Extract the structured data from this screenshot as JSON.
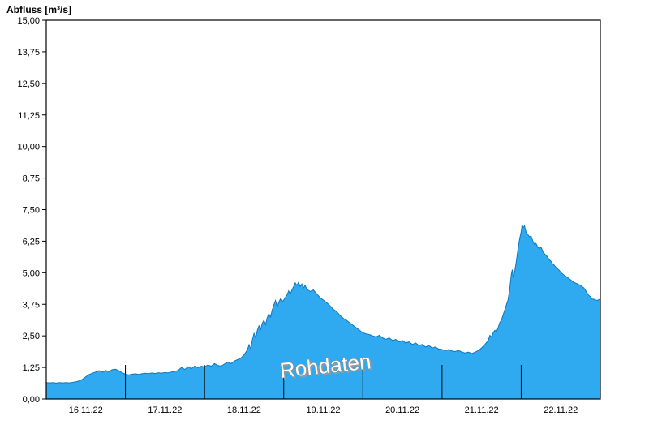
{
  "title": "Abfluss [m³/s]",
  "watermark": "Rohdaten",
  "chart_data": {
    "type": "area",
    "title": "Abfluss [m³/s]",
    "xlabel": "",
    "ylabel": "Abfluss [m³/s]",
    "ylim": [
      0,
      15
    ],
    "xlim": [
      0,
      168
    ],
    "x_unit": "hours since 16.11.22 00:00",
    "ytick_step": 1.25,
    "ytick_labels": [
      "0,00",
      "1,25",
      "2,50",
      "3,75",
      "5,00",
      "6,25",
      "7,50",
      "8,75",
      "10,00",
      "11,25",
      "12,50",
      "13,75",
      "15,00"
    ],
    "day_labels": [
      "16.11.22",
      "17.11.22",
      "18.11.22",
      "19.11.22",
      "20.11.22",
      "21.11.22",
      "22.11.22"
    ],
    "day_boundaries_hours": [
      24,
      48,
      72,
      96,
      120,
      144
    ],
    "grid": false,
    "legend": "none",
    "fill_color": "#2FA9F0",
    "line_color": "#0B77C2",
    "frame_color": "#000000",
    "points": [
      [
        0,
        0.65
      ],
      [
        1,
        0.64
      ],
      [
        2,
        0.65
      ],
      [
        3,
        0.63
      ],
      [
        4,
        0.65
      ],
      [
        5,
        0.64
      ],
      [
        6,
        0.65
      ],
      [
        7,
        0.64
      ],
      [
        8,
        0.66
      ],
      [
        9,
        0.68
      ],
      [
        10,
        0.72
      ],
      [
        11,
        0.78
      ],
      [
        12,
        0.88
      ],
      [
        13,
        0.97
      ],
      [
        14,
        1.02
      ],
      [
        15,
        1.07
      ],
      [
        16,
        1.12
      ],
      [
        17,
        1.06
      ],
      [
        18,
        1.13
      ],
      [
        19,
        1.08
      ],
      [
        20,
        1.16
      ],
      [
        21,
        1.18
      ],
      [
        22,
        1.12
      ],
      [
        23,
        1.04
      ],
      [
        24,
        0.98
      ],
      [
        25,
        0.95
      ],
      [
        26,
        0.98
      ],
      [
        27,
        1.0
      ],
      [
        28,
        0.97
      ],
      [
        29,
        1.0
      ],
      [
        30,
        1.02
      ],
      [
        31,
        1.0
      ],
      [
        32,
        1.03
      ],
      [
        33,
        1.01
      ],
      [
        34,
        1.04
      ],
      [
        35,
        1.02
      ],
      [
        36,
        1.05
      ],
      [
        37,
        1.03
      ],
      [
        38,
        1.07
      ],
      [
        39,
        1.1
      ],
      [
        40,
        1.13
      ],
      [
        41,
        1.25
      ],
      [
        42,
        1.17
      ],
      [
        43,
        1.28
      ],
      [
        44,
        1.2
      ],
      [
        45,
        1.3
      ],
      [
        46,
        1.24
      ],
      [
        47,
        1.3
      ],
      [
        48,
        1.27
      ],
      [
        49,
        1.35
      ],
      [
        50,
        1.3
      ],
      [
        51,
        1.4
      ],
      [
        52,
        1.33
      ],
      [
        53,
        1.3
      ],
      [
        54,
        1.38
      ],
      [
        55,
        1.46
      ],
      [
        56,
        1.4
      ],
      [
        57,
        1.5
      ],
      [
        58,
        1.56
      ],
      [
        59,
        1.62
      ],
      [
        60,
        1.75
      ],
      [
        61,
        1.95
      ],
      [
        61.5,
        2.15
      ],
      [
        62,
        1.98
      ],
      [
        62.5,
        2.35
      ],
      [
        63,
        2.6
      ],
      [
        63.5,
        2.42
      ],
      [
        64,
        2.72
      ],
      [
        64.5,
        2.9
      ],
      [
        65,
        2.75
      ],
      [
        65.5,
        3.0
      ],
      [
        66,
        3.12
      ],
      [
        66.5,
        2.95
      ],
      [
        67,
        3.22
      ],
      [
        67.5,
        3.38
      ],
      [
        68,
        3.25
      ],
      [
        68.5,
        3.52
      ],
      [
        69,
        3.72
      ],
      [
        69.5,
        3.9
      ],
      [
        70,
        3.65
      ],
      [
        70.5,
        3.82
      ],
      [
        71,
        3.96
      ],
      [
        71.5,
        3.85
      ],
      [
        72,
        3.92
      ],
      [
        72.5,
        4.02
      ],
      [
        73,
        4.12
      ],
      [
        73.5,
        4.28
      ],
      [
        74,
        4.15
      ],
      [
        74.5,
        4.32
      ],
      [
        75,
        4.45
      ],
      [
        75.5,
        4.6
      ],
      [
        76,
        4.5
      ],
      [
        76.5,
        4.62
      ],
      [
        77,
        4.46
      ],
      [
        77.5,
        4.56
      ],
      [
        78,
        4.4
      ],
      [
        78.5,
        4.5
      ],
      [
        79,
        4.35
      ],
      [
        80,
        4.26
      ],
      [
        81,
        4.32
      ],
      [
        82,
        4.16
      ],
      [
        83,
        4.02
      ],
      [
        84,
        3.92
      ],
      [
        85,
        3.82
      ],
      [
        86,
        3.7
      ],
      [
        87,
        3.56
      ],
      [
        88,
        3.46
      ],
      [
        89,
        3.32
      ],
      [
        90,
        3.2
      ],
      [
        91,
        3.12
      ],
      [
        92,
        3.02
      ],
      [
        93,
        2.92
      ],
      [
        94,
        2.82
      ],
      [
        95,
        2.72
      ],
      [
        96,
        2.62
      ],
      [
        97,
        2.58
      ],
      [
        98,
        2.55
      ],
      [
        99,
        2.5
      ],
      [
        100,
        2.46
      ],
      [
        101,
        2.52
      ],
      [
        102,
        2.42
      ],
      [
        103,
        2.36
      ],
      [
        104,
        2.42
      ],
      [
        105,
        2.32
      ],
      [
        106,
        2.36
      ],
      [
        107,
        2.26
      ],
      [
        108,
        2.32
      ],
      [
        109,
        2.22
      ],
      [
        110,
        2.26
      ],
      [
        111,
        2.16
      ],
      [
        112,
        2.22
      ],
      [
        113,
        2.12
      ],
      [
        114,
        2.16
      ],
      [
        115,
        2.06
      ],
      [
        116,
        2.12
      ],
      [
        117,
        2.02
      ],
      [
        118,
        2.06
      ],
      [
        119,
        1.98
      ],
      [
        120,
        1.96
      ],
      [
        121,
        1.92
      ],
      [
        122,
        1.96
      ],
      [
        123,
        1.9
      ],
      [
        124,
        1.88
      ],
      [
        125,
        1.92
      ],
      [
        126,
        1.86
      ],
      [
        127,
        1.82
      ],
      [
        128,
        1.86
      ],
      [
        129,
        1.8
      ],
      [
        130,
        1.85
      ],
      [
        131,
        1.92
      ],
      [
        132,
        2.02
      ],
      [
        133,
        2.16
      ],
      [
        134,
        2.32
      ],
      [
        134.5,
        2.52
      ],
      [
        135,
        2.46
      ],
      [
        135.5,
        2.62
      ],
      [
        136,
        2.72
      ],
      [
        136.5,
        2.66
      ],
      [
        137,
        2.82
      ],
      [
        137.5,
        3.02
      ],
      [
        138,
        3.12
      ],
      [
        138.5,
        3.32
      ],
      [
        139,
        3.52
      ],
      [
        139.5,
        3.72
      ],
      [
        140,
        3.92
      ],
      [
        140.5,
        4.32
      ],
      [
        141,
        4.92
      ],
      [
        141.3,
        5.12
      ],
      [
        141.6,
        4.82
      ],
      [
        142,
        5.02
      ],
      [
        142.5,
        5.42
      ],
      [
        143,
        5.92
      ],
      [
        143.5,
        6.32
      ],
      [
        144,
        6.62
      ],
      [
        144.3,
        6.9
      ],
      [
        144.6,
        6.78
      ],
      [
        145,
        6.86
      ],
      [
        145.5,
        6.6
      ],
      [
        146,
        6.52
      ],
      [
        146.5,
        6.42
      ],
      [
        147,
        6.46
      ],
      [
        147.5,
        6.26
      ],
      [
        148,
        6.12
      ],
      [
        148.5,
        6.16
      ],
      [
        149,
        6.02
      ],
      [
        149.5,
        5.96
      ],
      [
        150,
        6.02
      ],
      [
        150.5,
        5.86
      ],
      [
        151,
        5.76
      ],
      [
        151.5,
        5.7
      ],
      [
        152,
        5.62
      ],
      [
        152.5,
        5.52
      ],
      [
        153,
        5.46
      ],
      [
        153.5,
        5.36
      ],
      [
        154,
        5.3
      ],
      [
        154.5,
        5.22
      ],
      [
        155,
        5.16
      ],
      [
        155.5,
        5.1
      ],
      [
        156,
        5.02
      ],
      [
        156.5,
        4.96
      ],
      [
        157,
        4.9
      ],
      [
        158,
        4.82
      ],
      [
        159,
        4.72
      ],
      [
        160,
        4.62
      ],
      [
        161,
        4.56
      ],
      [
        162,
        4.5
      ],
      [
        163,
        4.4
      ],
      [
        163.5,
        4.3
      ],
      [
        164,
        4.2
      ],
      [
        164.5,
        4.1
      ],
      [
        165,
        4.05
      ],
      [
        165.5,
        3.96
      ],
      [
        166,
        3.95
      ],
      [
        167,
        3.9
      ],
      [
        168,
        3.96
      ]
    ]
  }
}
